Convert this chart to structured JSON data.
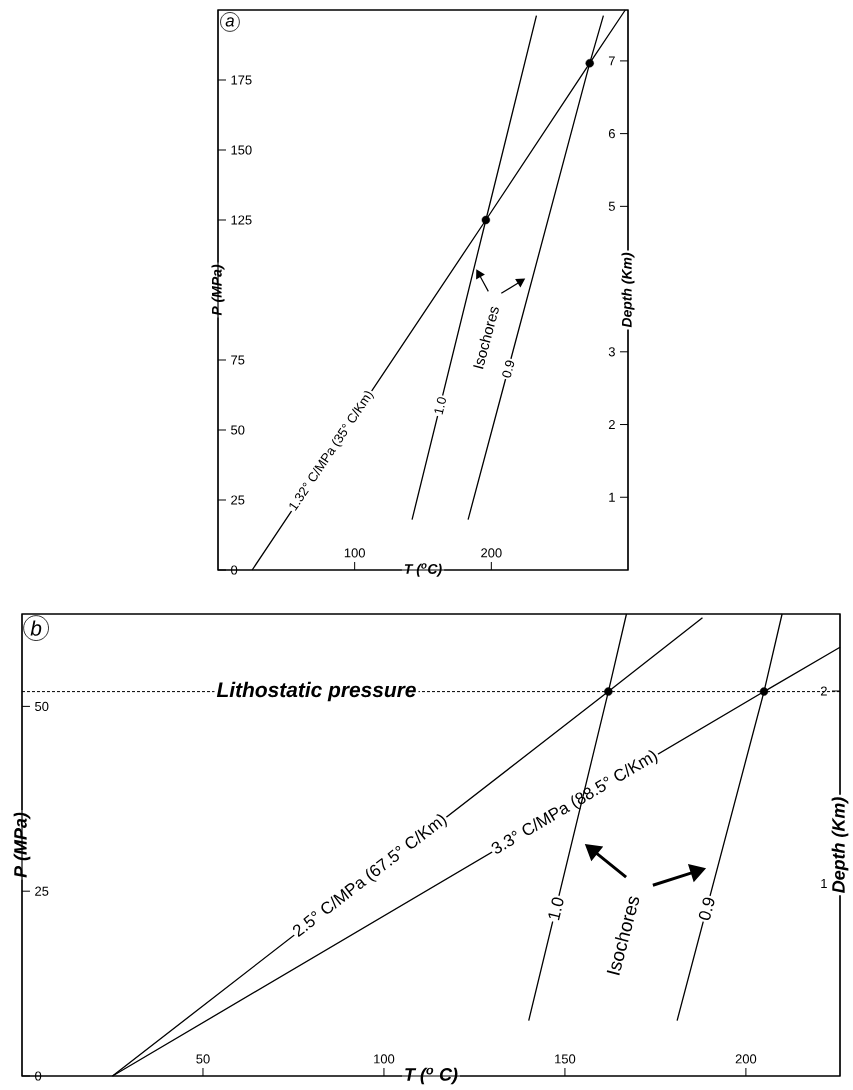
{
  "chart_data": [
    {
      "type": "line",
      "line_style": "solid",
      "annotations": [
        "a",
        "Isochores"
      ],
      "xlabel": "T ($^{o}$C)",
      "ylabel": "P (MPa)",
      "y2label": "Depth (Km)",
      "xlim": [
        0,
        300
      ],
      "ylim": [
        0,
        200
      ],
      "y2lim": [
        0,
        7.7
      ],
      "xticks": [
        100,
        200
      ],
      "yticks": [
        0,
        25,
        50,
        75,
        125,
        150,
        175
      ],
      "y2ticks": [
        1,
        2,
        3,
        5,
        6,
        7
      ],
      "series": [
        {
          "name": "1.32° C/MPa (35° C/Km)",
          "color": "#000000",
          "x": [
            25,
            196,
            272,
            298
          ],
          "values": [
            0,
            125,
            181,
            200
          ]
        },
        {
          "name": "1.0",
          "color": "#000000",
          "x": [
            142,
            196,
            233
          ],
          "values": [
            18,
            125,
            198
          ]
        },
        {
          "name": "0.9",
          "color": "#000000",
          "x": [
            183,
            272,
            282
          ],
          "values": [
            18,
            181,
            198
          ]
        },
        {
          "type": "scatter",
          "marker": "circle",
          "color": "#000000",
          "x": [
            196,
            272
          ],
          "values": [
            125,
            181
          ]
        }
      ]
    },
    {
      "type": "line",
      "line_style": "solid",
      "annotations": [
        "b",
        "Isochores"
      ],
      "xlabel": "T ($^{o}$ C)",
      "ylabel": "P (MPa)",
      "y2label": "Depth (Km)",
      "xlim": [
        0,
        226
      ],
      "ylim": [
        0,
        62.5
      ],
      "y2lim": [
        0,
        2.4
      ],
      "xticks": [
        50,
        100,
        150,
        200
      ],
      "yticks": [
        0,
        25,
        50
      ],
      "y2ticks": [
        1,
        2
      ],
      "ref_lines": [
        {
          "axis": "y",
          "value": 52,
          "label": "Lithostatic pressure",
          "line_style": "dashed"
        }
      ],
      "series": [
        {
          "name": "2.5° C/MPa (67.5° C/Km)",
          "color": "#000000",
          "x": [
            25,
            162,
            188
          ],
          "values": [
            0,
            52,
            62
          ]
        },
        {
          "name": "3.3° C/MPa (88.5° C/Km)",
          "color": "#000000",
          "x": [
            25,
            205,
            226
          ],
          "values": [
            0,
            52,
            58
          ]
        },
        {
          "name": "1.0",
          "color": "#000000",
          "x": [
            140,
            162,
            167
          ],
          "values": [
            7.5,
            52,
            62.5
          ]
        },
        {
          "name": "0.9",
          "color": "#000000",
          "x": [
            181,
            205,
            210
          ],
          "values": [
            7.5,
            52,
            62.5
          ]
        },
        {
          "type": "scatter",
          "marker": "circle",
          "color": "#000000",
          "x": [
            162,
            205
          ],
          "values": [
            52,
            52
          ]
        }
      ]
    }
  ]
}
